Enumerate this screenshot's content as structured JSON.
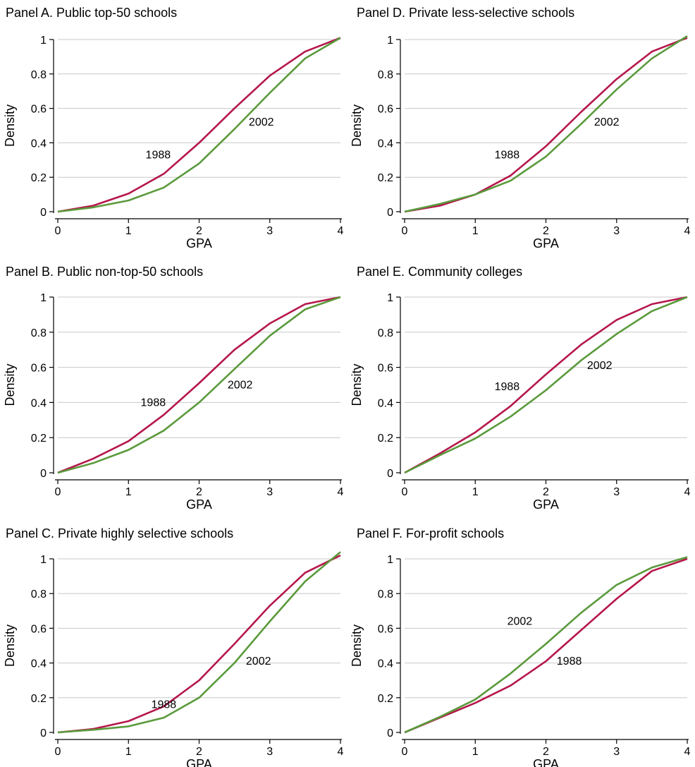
{
  "colors": {
    "1988": "#b5174a",
    "2002": "#5a9a3c",
    "grid": "#c8c8c8"
  },
  "chart_data": [
    {
      "type": "line",
      "title": "Panel A. Public top-50 schools",
      "xlabel": "GPA",
      "ylabel": "Density",
      "xlim": [
        0,
        4
      ],
      "ylim": [
        0,
        1
      ],
      "x_ticks": [
        "0",
        "1",
        "2",
        "3",
        "4"
      ],
      "y_ticks": [
        "0",
        "0.2",
        "0.4",
        "0.6",
        "0.8",
        "1"
      ],
      "grid": true,
      "x": [
        0,
        0.5,
        1,
        1.5,
        2,
        2.5,
        3,
        3.5,
        4
      ],
      "series": [
        {
          "name": "1988",
          "values": [
            0.0,
            0.035,
            0.105,
            0.22,
            0.4,
            0.6,
            0.79,
            0.93,
            1.01
          ]
        },
        {
          "name": "2002",
          "values": [
            0.0,
            0.025,
            0.065,
            0.14,
            0.28,
            0.48,
            0.69,
            0.89,
            1.01
          ]
        }
      ],
      "annotations": [
        {
          "text": "1988",
          "x": 1.42,
          "y": 0.31
        },
        {
          "text": "2002",
          "x": 2.88,
          "y": 0.5
        }
      ]
    },
    {
      "type": "line",
      "title": "Panel B. Public non-top-50 schools",
      "xlabel": "GPA",
      "ylabel": "Density",
      "xlim": [
        0,
        4
      ],
      "ylim": [
        0,
        1
      ],
      "x_ticks": [
        "0",
        "1",
        "2",
        "3",
        "4"
      ],
      "y_ticks": [
        "0",
        "0.2",
        "0.4",
        "0.6",
        "0.8",
        "1"
      ],
      "grid": true,
      "x": [
        0,
        0.5,
        1,
        1.5,
        2,
        2.5,
        3,
        3.5,
        4
      ],
      "series": [
        {
          "name": "1988",
          "values": [
            0.0,
            0.08,
            0.18,
            0.33,
            0.51,
            0.7,
            0.85,
            0.96,
            1.0
          ]
        },
        {
          "name": "2002",
          "values": [
            0.0,
            0.055,
            0.13,
            0.24,
            0.4,
            0.59,
            0.78,
            0.93,
            1.0
          ]
        }
      ],
      "annotations": [
        {
          "text": "1988",
          "x": 1.35,
          "y": 0.38
        },
        {
          "text": "2002",
          "x": 2.58,
          "y": 0.48
        }
      ]
    },
    {
      "type": "line",
      "title": "Panel C. Private highly selective schools",
      "xlabel": "GPA",
      "ylabel": "Density",
      "xlim": [
        0,
        4
      ],
      "ylim": [
        0,
        1
      ],
      "x_ticks": [
        "0",
        "1",
        "2",
        "3",
        "4"
      ],
      "y_ticks": [
        "0",
        "0.2",
        "0.4",
        "0.6",
        "0.8",
        "1"
      ],
      "grid": true,
      "x": [
        0,
        0.5,
        1,
        1.5,
        2,
        2.5,
        3,
        3.5,
        4
      ],
      "series": [
        {
          "name": "1988",
          "values": [
            0.0,
            0.02,
            0.065,
            0.15,
            0.3,
            0.51,
            0.73,
            0.92,
            1.02
          ]
        },
        {
          "name": "2002",
          "values": [
            0.0,
            0.015,
            0.035,
            0.085,
            0.2,
            0.4,
            0.64,
            0.87,
            1.04
          ]
        }
      ],
      "annotations": [
        {
          "text": "1988",
          "x": 1.5,
          "y": 0.14
        },
        {
          "text": "2002",
          "x": 2.84,
          "y": 0.39
        }
      ]
    },
    {
      "type": "line",
      "title": "Panel D. Private less-selective schools",
      "xlabel": "GPA",
      "ylabel": "Density",
      "xlim": [
        0,
        4
      ],
      "ylim": [
        0,
        1
      ],
      "x_ticks": [
        "0",
        "1",
        "2",
        "3",
        "4"
      ],
      "y_ticks": [
        "0",
        "0.2",
        "0.4",
        "0.6",
        "0.8",
        "1"
      ],
      "grid": true,
      "x": [
        0,
        0.5,
        1,
        1.5,
        2,
        2.5,
        3,
        3.5,
        4
      ],
      "series": [
        {
          "name": "1988",
          "values": [
            0.0,
            0.035,
            0.1,
            0.21,
            0.38,
            0.58,
            0.77,
            0.93,
            1.01
          ]
        },
        {
          "name": "2002",
          "values": [
            0.0,
            0.045,
            0.1,
            0.18,
            0.32,
            0.51,
            0.71,
            0.89,
            1.02
          ]
        }
      ],
      "annotations": [
        {
          "text": "1988",
          "x": 1.45,
          "y": 0.31
        },
        {
          "text": "2002",
          "x": 2.86,
          "y": 0.5
        }
      ]
    },
    {
      "type": "line",
      "title": "Panel E. Community colleges",
      "xlabel": "GPA",
      "ylabel": "Density",
      "xlim": [
        0,
        4
      ],
      "ylim": [
        0,
        1
      ],
      "x_ticks": [
        "0",
        "1",
        "2",
        "3",
        "4"
      ],
      "y_ticks": [
        "0",
        "0.2",
        "0.4",
        "0.6",
        "0.8",
        "1"
      ],
      "grid": true,
      "x": [
        0,
        0.5,
        1,
        1.5,
        2,
        2.5,
        3,
        3.5,
        4
      ],
      "series": [
        {
          "name": "1988",
          "values": [
            0.0,
            0.11,
            0.23,
            0.38,
            0.56,
            0.73,
            0.87,
            0.96,
            1.0
          ]
        },
        {
          "name": "2002",
          "values": [
            0.0,
            0.1,
            0.195,
            0.32,
            0.47,
            0.64,
            0.79,
            0.92,
            1.0
          ]
        }
      ],
      "annotations": [
        {
          "text": "1988",
          "x": 1.45,
          "y": 0.47
        },
        {
          "text": "2002",
          "x": 2.76,
          "y": 0.59
        }
      ]
    },
    {
      "type": "line",
      "title": "Panel F. For-profit schools",
      "xlabel": "GPA",
      "ylabel": "Density",
      "xlim": [
        0,
        4
      ],
      "ylim": [
        0,
        1
      ],
      "x_ticks": [
        "0",
        "1",
        "2",
        "3",
        "4"
      ],
      "y_ticks": [
        "0",
        "0.2",
        "0.4",
        "0.6",
        "0.8",
        "1"
      ],
      "grid": true,
      "x": [
        0,
        0.5,
        1,
        1.5,
        2,
        2.5,
        3,
        3.5,
        4
      ],
      "series": [
        {
          "name": "1988",
          "values": [
            0.0,
            0.085,
            0.17,
            0.27,
            0.41,
            0.59,
            0.77,
            0.93,
            1.0
          ]
        },
        {
          "name": "2002",
          "values": [
            0.0,
            0.09,
            0.19,
            0.34,
            0.51,
            0.69,
            0.85,
            0.95,
            1.01
          ]
        }
      ],
      "annotations": [
        {
          "text": "2002",
          "x": 1.63,
          "y": 0.62
        },
        {
          "text": "1988",
          "x": 2.33,
          "y": 0.39
        }
      ]
    }
  ]
}
